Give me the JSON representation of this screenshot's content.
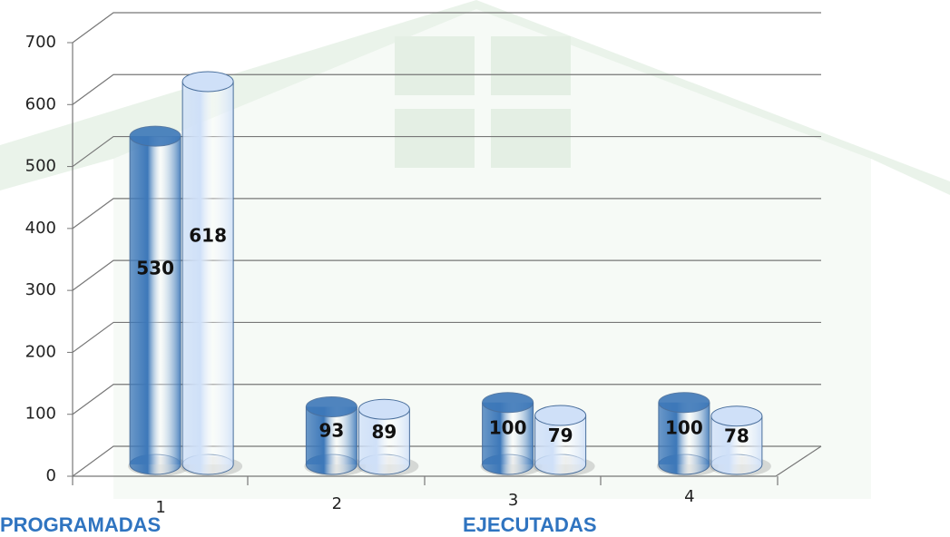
{
  "chart_data": {
    "type": "bar",
    "categories": [
      "1",
      "2",
      "3",
      "4"
    ],
    "series": [
      {
        "name": "PROGRAMADAS",
        "color": "#3d78b9",
        "values": [
          530,
          93,
          100,
          100
        ]
      },
      {
        "name": "EJECUTADAS",
        "color": "#cfe0f8",
        "values": [
          618,
          89,
          79,
          78
        ]
      }
    ],
    "ylim": [
      0,
      700
    ],
    "yticks": [
      0,
      100,
      200,
      300,
      400,
      500,
      600,
      700
    ],
    "grid": true
  }
}
